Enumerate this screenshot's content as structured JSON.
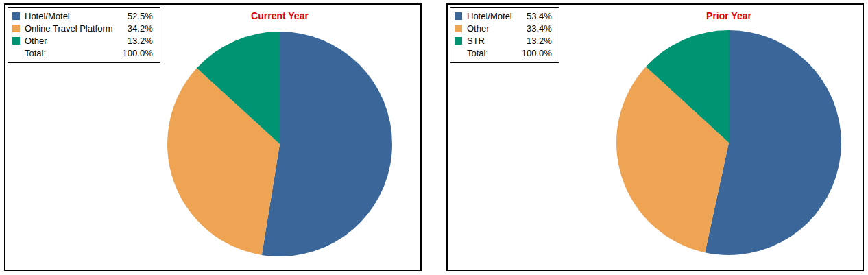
{
  "chart_data": [
    {
      "type": "pie",
      "title": "Current Year",
      "categories": [
        "Hotel/Motel",
        "Online Travel Platform",
        "Other"
      ],
      "values": [
        52.5,
        34.2,
        13.2
      ],
      "value_labels": [
        "52.5%",
        "34.2%",
        "13.2%"
      ],
      "colors": [
        "#3b6699",
        "#eea452",
        "#009473"
      ],
      "legend": "top-left",
      "total": {
        "label": "Total:",
        "value": 100,
        "value_label": "100.0%"
      }
    },
    {
      "type": "pie",
      "title": "Prior Year",
      "categories": [
        "Hotel/Motel",
        "Other",
        "STR"
      ],
      "values": [
        53.4,
        33.4,
        13.2
      ],
      "value_labels": [
        "53.4%",
        "33.4%",
        "13.2%"
      ],
      "colors": [
        "#3b6699",
        "#eea452",
        "#009473"
      ],
      "legend": "top-left",
      "total": {
        "label": "Total:",
        "value": 100,
        "value_label": "100.0%"
      }
    }
  ]
}
